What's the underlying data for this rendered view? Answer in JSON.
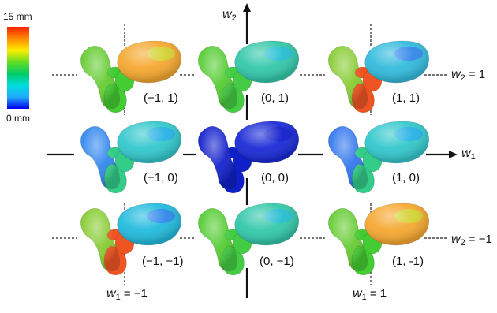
{
  "colorbar": {
    "max_label": "15 mm",
    "min_label": "0 mm",
    "colors": [
      "#ff2200",
      "#ff8800",
      "#ffee00",
      "#66dd22",
      "#00cc66",
      "#00dddd",
      "#22aaff",
      "#0000ee"
    ]
  },
  "axes": {
    "w1": {
      "var": "w",
      "sub": "1"
    },
    "w2": {
      "var": "w",
      "sub": "2"
    }
  },
  "guides": {
    "w2_top": {
      "var": "w",
      "sub": "2",
      "eq": " = 1"
    },
    "w2_bottom": {
      "var": "w",
      "sub": "2",
      "eq": " = −1"
    },
    "w1_left": {
      "var": "w",
      "sub": "1",
      "eq": " = −1"
    },
    "w1_right": {
      "var": "w",
      "sub": "1",
      "eq": " = 1"
    }
  },
  "cells": [
    {
      "label": "(−1, 1)",
      "w1": -1,
      "w2": 1,
      "big": "#f5a830",
      "b2": "#c8e030",
      "left": "#66cc33",
      "low": "#44cc33"
    },
    {
      "label": "(0, 1)",
      "w1": 0,
      "w2": 1,
      "big": "#33c8aa",
      "b2": "#22bbdd",
      "left": "#55cc33",
      "low": "#44cc44"
    },
    {
      "label": "(1, 1)",
      "w1": 1,
      "w2": 1,
      "big": "#33bbdd",
      "b2": "#3377ee",
      "left": "#88cc33",
      "low": "#ee5522"
    },
    {
      "label": "(−1, 0)",
      "w1": -1,
      "w2": 0,
      "big": "#33c8cc",
      "b2": "#22aaee",
      "left": "#3388ee",
      "low": "#33cc88"
    },
    {
      "label": "(0, 0)",
      "w1": 0,
      "w2": 0,
      "big": "#1a2ad6",
      "b2": "#0c18c8",
      "left": "#1522cc",
      "low": "#1020c8"
    },
    {
      "label": "(1, 0)",
      "w1": 1,
      "w2": 0,
      "big": "#33c8cc",
      "b2": "#22aaee",
      "left": "#3377ee",
      "low": "#33cc88"
    },
    {
      "label": "(−1, −1)",
      "w1": -1,
      "w2": -1,
      "big": "#22bbdd",
      "b2": "#3377ee",
      "left": "#88cc33",
      "low": "#ee5522"
    },
    {
      "label": "(0, −1)",
      "w1": 0,
      "w2": -1,
      "big": "#33c8aa",
      "b2": "#22bbdd",
      "left": "#55cc33",
      "low": "#44cc44"
    },
    {
      "label": "(1, -1)",
      "w1": 1,
      "w2": -1,
      "big": "#f5a830",
      "b2": "#c8e030",
      "left": "#66cc33",
      "low": "#44cc33"
    }
  ]
}
